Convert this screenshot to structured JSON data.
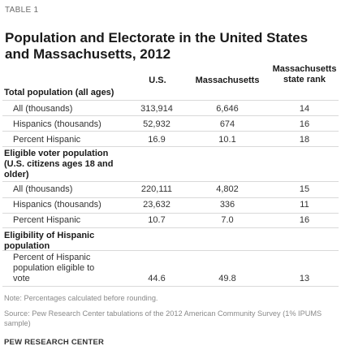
{
  "table_label": "TABLE 1",
  "title": "Population and Electorate in the United States and Massachusetts, 2012",
  "columns": {
    "us": "U.S.",
    "ma": "Massachusetts",
    "rank": "Massachusetts state rank"
  },
  "sections": [
    {
      "title": "Total population (all ages)",
      "rows": [
        {
          "label": "All (thousands)",
          "us": "313,914",
          "ma": "6,646",
          "rank": "14"
        },
        {
          "label": "Hispanics (thousands)",
          "us": "52,932",
          "ma": "674",
          "rank": "16"
        },
        {
          "label": "Percent Hispanic",
          "us": "16.9",
          "ma": "10.1",
          "rank": "18"
        }
      ]
    },
    {
      "title": "Eligible voter population (U.S. citizens ages 18 and older)",
      "rows": [
        {
          "label": "All (thousands)",
          "us": "220,111",
          "ma": "4,802",
          "rank": "15"
        },
        {
          "label": "Hispanics (thousands)",
          "us": "23,632",
          "ma": "336",
          "rank": "11"
        },
        {
          "label": "Percent Hispanic",
          "us": "10.7",
          "ma": "7.0",
          "rank": "16"
        }
      ]
    },
    {
      "title": "Eligibility of Hispanic population",
      "rows": [
        {
          "label": "Percent of Hispanic population eligible to vote",
          "us": "44.6",
          "ma": "49.8",
          "rank": "13"
        }
      ]
    }
  ],
  "note": "Note: Percentages calculated before rounding.",
  "source": "Source: Pew Research Center tabulations of the 2012 American Community Survey (1% IPUMS sample)",
  "credit": "PEW RESEARCH CENTER"
}
